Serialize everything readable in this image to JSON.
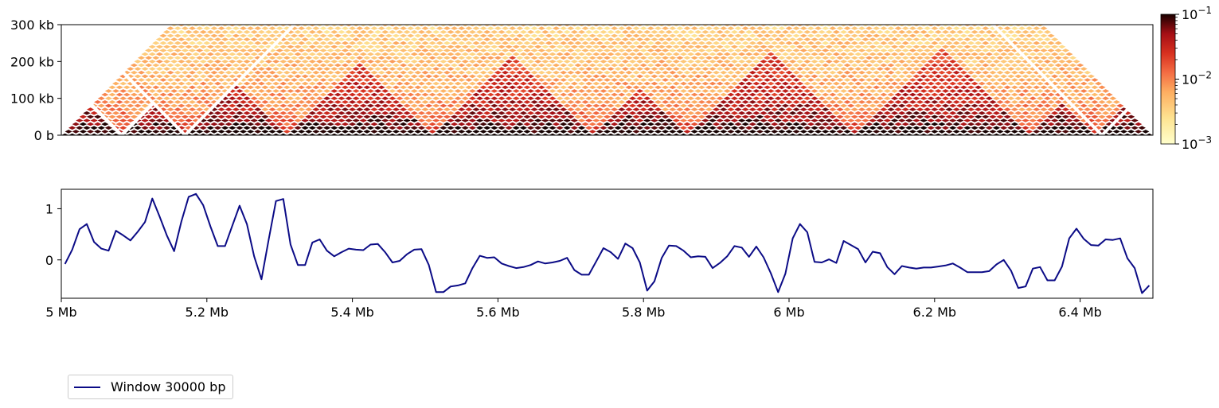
{
  "chart_data": [
    {
      "type": "heatmap",
      "title": "",
      "xlabel": "",
      "ylabel": "",
      "x_range_mb": [
        5.0,
        6.5
      ],
      "ylim_kb": [
        0,
        300
      ],
      "y_ticks": [
        {
          "value": 0,
          "label": "0 b"
        },
        {
          "value": 100,
          "label": "100 kb"
        },
        {
          "value": 200,
          "label": "200 kb"
        },
        {
          "value": 300,
          "label": "300 kb"
        }
      ],
      "colormap": "YlOrRd (white-yellow-red-black)",
      "color_scale": "log",
      "colorbar_ticks": [
        {
          "value": 0.001,
          "base": "10",
          "exp": "−3"
        },
        {
          "value": 0.01,
          "base": "10",
          "exp": "−2"
        },
        {
          "value": 0.1,
          "base": "10",
          "exp": "−1"
        }
      ],
      "tad_domains_mb": [
        [
          5.0,
          5.08
        ],
        [
          5.08,
          5.17
        ],
        [
          5.17,
          5.31
        ],
        [
          5.31,
          5.51
        ],
        [
          5.51,
          5.73
        ],
        [
          5.73,
          5.86
        ],
        [
          5.86,
          6.09
        ],
        [
          6.09,
          6.33
        ],
        [
          6.33,
          6.42
        ],
        [
          6.42,
          6.5
        ]
      ],
      "masked_diagonals_mb": [
        {
          "center": 5.083,
          "extent_kb": 90
        },
        {
          "center": 5.17,
          "extent_kb": 300
        },
        {
          "center": 6.43,
          "extent_kb": 300
        }
      ]
    },
    {
      "type": "line",
      "title": "",
      "xlabel": "",
      "ylabel": "",
      "xlim": [
        5.0,
        6.5
      ],
      "ylim": [
        -0.75,
        1.38
      ],
      "x_ticks": [
        {
          "value": 5.0,
          "label": "5 Mb"
        },
        {
          "value": 5.2,
          "label": "5.2 Mb"
        },
        {
          "value": 5.4,
          "label": "5.4 Mb"
        },
        {
          "value": 5.6,
          "label": "5.6 Mb"
        },
        {
          "value": 5.8,
          "label": "5.8 Mb"
        },
        {
          "value": 6.0,
          "label": "6 Mb"
        },
        {
          "value": 6.2,
          "label": "6.2 Mb"
        },
        {
          "value": 6.4,
          "label": "6.4 Mb"
        }
      ],
      "y_ticks": [
        {
          "value": 0,
          "label": "0"
        },
        {
          "value": 1,
          "label": "1"
        }
      ],
      "legend_position": "bottom-left, below plot",
      "series": [
        {
          "name": "Window 30000 bp",
          "color": "#0b0b86",
          "x": [
            5.005,
            5.015,
            5.025,
            5.035,
            5.045,
            5.055,
            5.065,
            5.075,
            5.085,
            5.095,
            5.105,
            5.115,
            5.125,
            5.135,
            5.145,
            5.155,
            5.165,
            5.175,
            5.185,
            5.195,
            5.205,
            5.215,
            5.225,
            5.235,
            5.245,
            5.255,
            5.265,
            5.275,
            5.285,
            5.295,
            5.305,
            5.315,
            5.325,
            5.335,
            5.345,
            5.355,
            5.365,
            5.375,
            5.385,
            5.395,
            5.405,
            5.415,
            5.425,
            5.435,
            5.445,
            5.455,
            5.465,
            5.475,
            5.485,
            5.495,
            5.505,
            5.515,
            5.525,
            5.535,
            5.545,
            5.555,
            5.565,
            5.575,
            5.585,
            5.595,
            5.605,
            5.615,
            5.625,
            5.635,
            5.645,
            5.655,
            5.665,
            5.675,
            5.685,
            5.695,
            5.705,
            5.715,
            5.725,
            5.735,
            5.745,
            5.755,
            5.765,
            5.775,
            5.785,
            5.795,
            5.805,
            5.815,
            5.825,
            5.835,
            5.845,
            5.855,
            5.865,
            5.875,
            5.885,
            5.895,
            5.905,
            5.915,
            5.925,
            5.935,
            5.945,
            5.955,
            5.965,
            5.975,
            5.985,
            5.995,
            6.005,
            6.015,
            6.025,
            6.035,
            6.045,
            6.055,
            6.065,
            6.075,
            6.085,
            6.095,
            6.105,
            6.115,
            6.125,
            6.135,
            6.145,
            6.155,
            6.165,
            6.175,
            6.185,
            6.195,
            6.205,
            6.215,
            6.225,
            6.235,
            6.245,
            6.255,
            6.265,
            6.275,
            6.285,
            6.295,
            6.305,
            6.315,
            6.325,
            6.335,
            6.345,
            6.355,
            6.365,
            6.375,
            6.385,
            6.395,
            6.405,
            6.415,
            6.425,
            6.435,
            6.445,
            6.455,
            6.465,
            6.475,
            6.485,
            6.495
          ],
          "y": [
            -0.08,
            0.2,
            0.6,
            0.7,
            0.35,
            0.22,
            0.18,
            0.57,
            0.48,
            0.38,
            0.55,
            0.74,
            1.2,
            0.85,
            0.48,
            0.17,
            0.75,
            1.23,
            1.29,
            1.07,
            0.65,
            0.27,
            0.27,
            0.67,
            1.06,
            0.7,
            0.07,
            -0.38,
            0.4,
            1.15,
            1.19,
            0.3,
            -0.1,
            -0.1,
            0.34,
            0.4,
            0.18,
            0.07,
            0.15,
            0.22,
            0.2,
            0.19,
            0.3,
            0.31,
            0.15,
            -0.05,
            -0.02,
            0.11,
            0.2,
            0.21,
            -0.1,
            -0.63,
            -0.63,
            -0.52,
            -0.5,
            -0.46,
            -0.16,
            0.08,
            0.04,
            0.05,
            -0.07,
            -0.12,
            -0.16,
            -0.14,
            -0.1,
            -0.03,
            -0.07,
            -0.05,
            -0.02,
            0.04,
            -0.2,
            -0.29,
            -0.29,
            -0.03,
            0.23,
            0.15,
            0.02,
            0.32,
            0.23,
            -0.05,
            -0.6,
            -0.42,
            0.04,
            0.28,
            0.27,
            0.18,
            0.05,
            0.07,
            0.06,
            -0.16,
            -0.06,
            0.07,
            0.27,
            0.24,
            0.06,
            0.26,
            0.05,
            -0.26,
            -0.63,
            -0.27,
            0.42,
            0.7,
            0.54,
            -0.04,
            -0.05,
            0.01,
            -0.06,
            0.37,
            0.29,
            0.21,
            -0.05,
            0.16,
            0.13,
            -0.14,
            -0.28,
            -0.12,
            -0.15,
            -0.17,
            -0.15,
            -0.15,
            -0.13,
            -0.11,
            -0.07,
            -0.15,
            -0.24,
            -0.24,
            -0.24,
            -0.22,
            -0.09,
            0.0,
            -0.21,
            -0.55,
            -0.52,
            -0.17,
            -0.14,
            -0.4,
            -0.4,
            -0.13,
            0.42,
            0.61,
            0.41,
            0.29,
            0.28,
            0.4,
            0.39,
            0.42,
            0.03,
            -0.16,
            -0.65,
            -0.5
          ]
        }
      ]
    }
  ]
}
